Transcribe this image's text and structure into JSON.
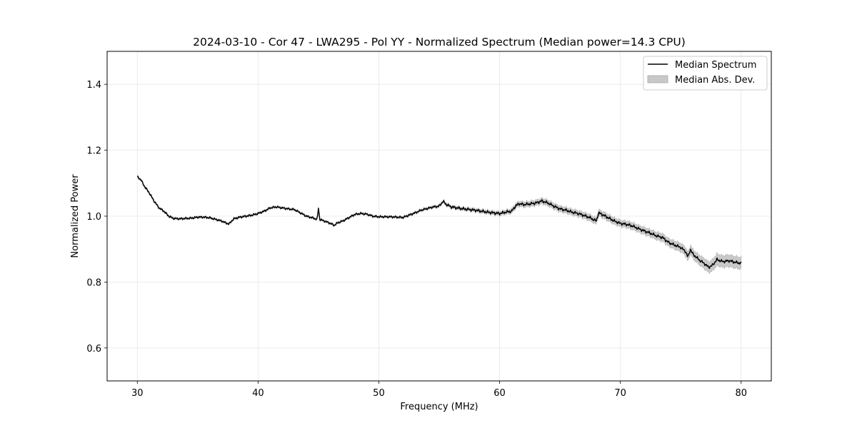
{
  "chart_data": {
    "type": "line",
    "title": "2024-03-10 - Cor 47 - LWA295 - Pol YY - Normalized Spectrum (Median power=14.3 CPU)",
    "xlabel": "Frequency (MHz)",
    "ylabel": "Normalized Power",
    "xlim": [
      27.5,
      82.5
    ],
    "ylim": [
      0.5,
      1.5
    ],
    "xticks": [
      30,
      40,
      50,
      60,
      70,
      80
    ],
    "yticks": [
      0.6,
      0.8,
      1.0,
      1.2,
      1.4
    ],
    "grid": true,
    "legend_position": "top-right",
    "legend": [
      {
        "label": "Median Spectrum",
        "kind": "line",
        "color": "#000000"
      },
      {
        "label": "Median Abs. Dev.",
        "kind": "band",
        "color": "#c8c8c8"
      }
    ],
    "series": [
      {
        "name": "Median Spectrum",
        "x": [
          30.0,
          30.3,
          30.6,
          31.0,
          31.4,
          31.8,
          32.2,
          32.6,
          33.0,
          33.5,
          34.0,
          34.5,
          35.0,
          35.5,
          36.0,
          36.5,
          37.0,
          37.3,
          37.6,
          37.8,
          38.0,
          38.5,
          39.0,
          39.5,
          40.0,
          40.5,
          41.0,
          41.5,
          42.0,
          42.5,
          43.0,
          43.5,
          44.0,
          44.5,
          44.9,
          45.0,
          45.1,
          45.5,
          46.0,
          46.3,
          46.6,
          47.0,
          47.5,
          48.0,
          48.5,
          49.0,
          49.5,
          50.0,
          50.5,
          51.0,
          51.5,
          52.0,
          52.5,
          53.0,
          53.5,
          54.0,
          54.5,
          55.0,
          55.3,
          55.6,
          56.0,
          56.5,
          57.0,
          57.5,
          58.0,
          58.5,
          59.0,
          59.5,
          60.0,
          60.5,
          61.0,
          61.3,
          61.6,
          62.0,
          62.5,
          63.0,
          63.5,
          64.0,
          64.5,
          65.0,
          65.5,
          66.0,
          66.5,
          67.0,
          67.5,
          68.0,
          68.2,
          68.5,
          69.0,
          69.5,
          70.0,
          70.5,
          71.0,
          71.5,
          72.0,
          72.5,
          73.0,
          73.5,
          74.0,
          74.5,
          75.0,
          75.4,
          75.6,
          75.8,
          76.0,
          76.5,
          77.0,
          77.3,
          77.6,
          78.0,
          78.5,
          79.0,
          79.5,
          80.0
        ],
        "values": [
          1.12,
          1.11,
          1.09,
          1.07,
          1.045,
          1.025,
          1.015,
          1.0,
          0.993,
          0.992,
          0.993,
          0.994,
          0.997,
          0.997,
          0.995,
          0.99,
          0.985,
          0.98,
          0.976,
          0.985,
          0.992,
          0.997,
          1.0,
          1.003,
          1.008,
          1.015,
          1.025,
          1.028,
          1.025,
          1.022,
          1.02,
          1.01,
          1.0,
          0.995,
          0.99,
          1.025,
          0.99,
          0.985,
          0.978,
          0.972,
          0.98,
          0.985,
          0.995,
          1.005,
          1.008,
          1.006,
          1.0,
          0.998,
          0.998,
          0.998,
          0.997,
          0.996,
          1.003,
          1.01,
          1.018,
          1.023,
          1.028,
          1.03,
          1.045,
          1.035,
          1.028,
          1.025,
          1.022,
          1.02,
          1.018,
          1.015,
          1.012,
          1.01,
          1.008,
          1.012,
          1.015,
          1.03,
          1.038,
          1.035,
          1.037,
          1.04,
          1.046,
          1.04,
          1.03,
          1.022,
          1.018,
          1.012,
          1.008,
          1.002,
          0.995,
          0.985,
          1.01,
          1.005,
          0.995,
          0.985,
          0.978,
          0.975,
          0.97,
          0.962,
          0.955,
          0.948,
          0.94,
          0.935,
          0.92,
          0.912,
          0.905,
          0.893,
          0.875,
          0.9,
          0.885,
          0.868,
          0.855,
          0.845,
          0.85,
          0.868,
          0.862,
          0.865,
          0.86,
          0.857
        ]
      },
      {
        "name": "Median Abs. Dev.",
        "x": [
          30.0,
          40.0,
          50.0,
          55.0,
          60.0,
          62.0,
          64.0,
          66.0,
          68.0,
          70.0,
          72.0,
          74.0,
          76.0,
          78.0,
          80.0
        ],
        "values": [
          0.003,
          0.003,
          0.003,
          0.004,
          0.006,
          0.008,
          0.009,
          0.009,
          0.01,
          0.01,
          0.011,
          0.012,
          0.014,
          0.018,
          0.018
        ]
      }
    ]
  }
}
